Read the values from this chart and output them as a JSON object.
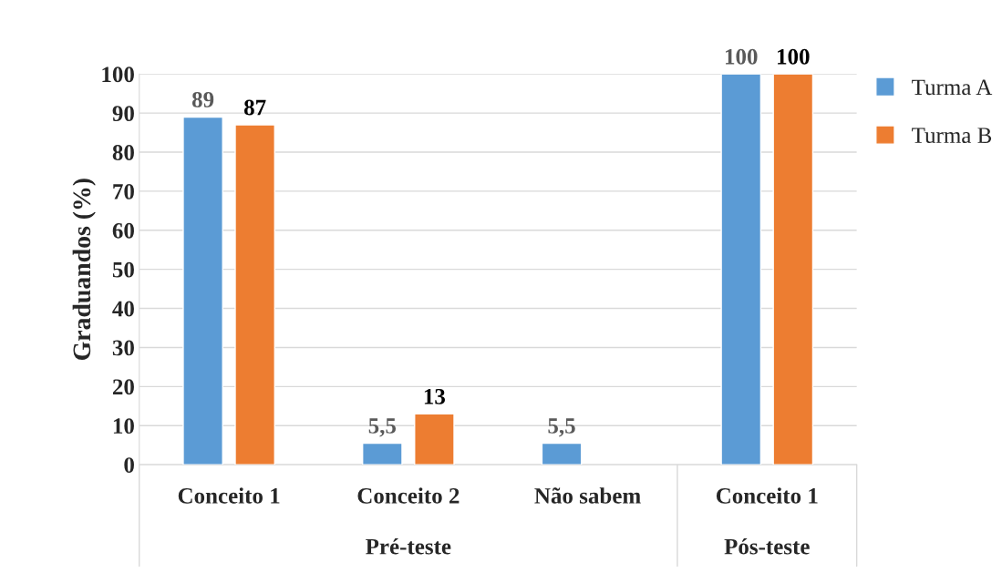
{
  "chart_data": {
    "type": "bar",
    "categories": [
      "Conceito 1",
      "Conceito 2",
      "Não sabem",
      "Conceito 1"
    ],
    "ylabel": "Graduandos (%)",
    "series": [
      {
        "name": "Turma A",
        "color": "#5b9bd5",
        "values": [
          89,
          5.5,
          5.5,
          100
        ],
        "value_labels": [
          "89",
          "5,5",
          "5,5",
          "100"
        ]
      },
      {
        "name": "Turma B",
        "color": "#ed7d31",
        "values": [
          87,
          13,
          null,
          100
        ],
        "value_labels": [
          "87",
          "13",
          null,
          "100"
        ]
      }
    ],
    "ylim": [
      0,
      100
    ],
    "yticks": [
      0,
      10,
      20,
      30,
      40,
      50,
      60,
      70,
      80,
      90,
      100
    ],
    "grid": "y",
    "legend": "top right",
    "annotations": [
      "Pré-teste",
      "Pós-teste"
    ]
  }
}
